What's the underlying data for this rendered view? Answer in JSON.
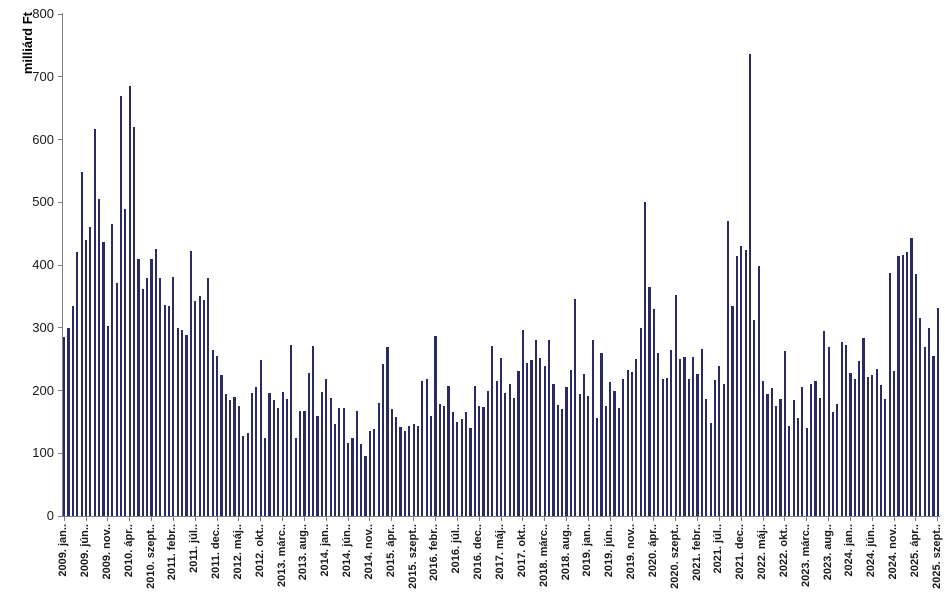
{
  "chart_data": {
    "type": "bar",
    "title": "",
    "ylabel": "milliárd Ft",
    "xlabel": "",
    "ylim": [
      0,
      800
    ],
    "yticks": [
      0,
      100,
      200,
      300,
      400,
      500,
      600,
      700,
      800
    ],
    "grid": false,
    "legend": "none",
    "bar_color": "#2a2a64",
    "axis_color": "#808080",
    "text_color": "#1a1a1a",
    "background_color": "#ffffff",
    "x_start_label": "2009. jan",
    "x_end_label": "2025. szept",
    "xtick_label_every": 5,
    "xtick_labels": [
      "2009. jan..",
      "2009. jún..",
      "2009. nov..",
      "2010. ápr..",
      "2010. szept..",
      "2011. febr..",
      "2011. júl..",
      "2011. dec..",
      "2012. máj..",
      "2012. okt..",
      "2013. márc..",
      "2013. aug..",
      "2014. jan..",
      "2014. jún..",
      "2014. nov..",
      "2015. ápr..",
      "2015. szept..",
      "2016. febr..",
      "2016. júl..",
      "2016. dec..",
      "2017. máj..",
      "2017. okt..",
      "2018. márc..",
      "2018. aug..",
      "2019. jan..",
      "2019. jún..",
      "2019. nov..",
      "2020. ápr..",
      "2020. szept..",
      "2021. febr..",
      "2021. júl..",
      "2021. dec..",
      "2022. máj..",
      "2022. okt..",
      "2023. márc..",
      "2023. aug..",
      "2024. jan..",
      "2024. jún..",
      "2024. nov..",
      "2025. ápr..",
      "2025. szept.."
    ],
    "n_points": 201,
    "values": [
      285,
      300,
      335,
      420,
      548,
      440,
      460,
      616,
      505,
      436,
      303,
      465,
      371,
      670,
      490,
      685,
      620,
      410,
      361,
      380,
      410,
      425,
      380,
      336,
      335,
      381,
      299,
      296,
      288,
      423,
      342,
      350,
      345,
      380,
      265,
      255,
      225,
      195,
      185,
      190,
      175,
      127,
      133,
      196,
      206,
      248,
      125,
      196,
      185,
      172,
      198,
      186,
      272,
      125,
      168,
      167,
      228,
      271,
      160,
      197,
      219,
      188,
      147,
      172,
      172,
      116,
      124,
      167,
      114,
      95,
      135,
      138,
      180,
      242,
      270,
      171,
      158,
      142,
      136,
      143,
      146,
      143,
      215,
      219,
      160,
      287,
      179,
      176,
      207,
      166,
      150,
      155,
      166,
      141,
      207,
      176,
      174,
      199,
      271,
      215,
      252,
      196,
      211,
      188,
      231,
      296,
      244,
      248,
      280,
      252,
      239,
      281,
      211,
      177,
      171,
      206,
      232,
      346,
      195,
      227,
      191,
      280,
      156,
      259,
      176,
      213,
      199,
      172,
      219,
      232,
      229,
      250,
      300,
      500,
      365,
      330,
      260,
      218,
      220,
      265,
      352,
      250,
      253,
      218,
      254,
      227,
      266,
      186,
      149,
      216,
      239,
      210,
      470,
      335,
      415,
      431,
      424,
      737,
      312,
      398,
      215,
      194,
      204,
      175,
      186,
      263,
      143,
      185,
      156,
      205,
      141,
      210,
      215,
      188,
      295,
      270,
      165,
      179,
      277,
      272,
      228,
      218,
      247,
      283,
      222,
      224,
      234,
      209,
      187,
      388,
      231,
      415,
      416,
      420,
      443,
      386,
      315,
      270,
      300,
      255,
      332
    ]
  }
}
